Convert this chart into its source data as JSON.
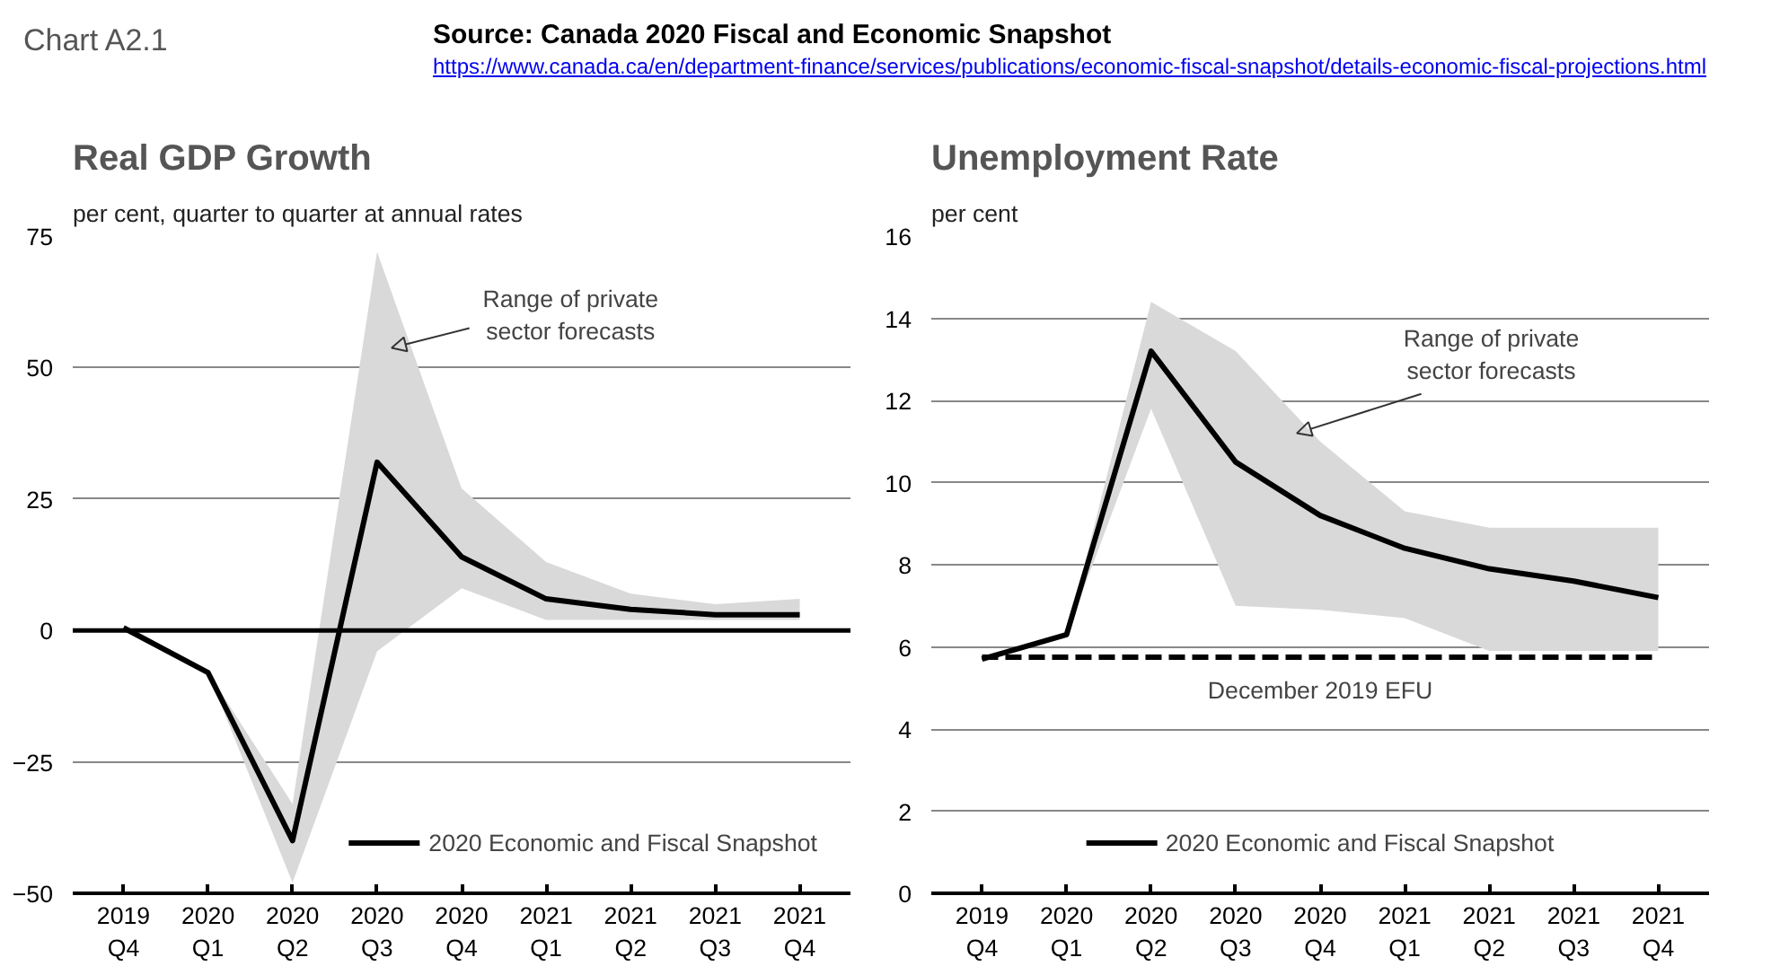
{
  "chart_data": [
    {
      "type": "line",
      "title": "Real GDP Growth",
      "ylabel": "per cent, quarter to quarter at annual rates",
      "annotations": [
        "Chart A2.1",
        "Source: Canada 2020 Fiscal and Economic Snapshot",
        "https://www.canada.ca/en/department-finance/services/publications/economic-fiscal-snapshot/details-economic-fiscal-projections.html",
        "Range of private sector forecasts"
      ],
      "categories": [
        "2019\nQ4",
        "2020\nQ1",
        "2020\nQ2",
        "2020\nQ3",
        "2020\nQ4",
        "2021\nQ1",
        "2021\nQ2",
        "2021\nQ3",
        "2021\nQ4"
      ],
      "series": [
        {
          "name": "2020 Economic and Fiscal Snapshot",
          "color": "#000000",
          "values": [
            0.5,
            -8,
            -40,
            32,
            14,
            6,
            4,
            3,
            3
          ],
          "lower": [
            0.5,
            -8,
            -48,
            -4,
            8,
            2,
            2,
            2,
            2
          ],
          "upper": [
            0.5,
            -8,
            -33,
            72,
            27,
            13,
            7,
            5,
            6
          ]
        }
      ],
      "ylim": [
        -50,
        75
      ],
      "yticks": [
        -50,
        -25,
        0,
        25,
        50,
        75
      ],
      "grid": "y",
      "legend": "bottom right",
      "line_style": "solid",
      "ref_lines": [
        {
          "axis": "y",
          "value": 0,
          "color": "#000000"
        }
      ]
    },
    {
      "type": "line",
      "title": "Unemployment Rate",
      "ylabel": "per cent",
      "annotations": [
        "Range of private sector forecasts"
      ],
      "categories": [
        "2019\nQ4",
        "2020\nQ1",
        "2020\nQ2",
        "2020\nQ3",
        "2020\nQ4",
        "2021\nQ1",
        "2021\nQ2",
        "2021\nQ3",
        "2021\nQ4"
      ],
      "series": [
        {
          "name": "2020 Economic and Fiscal Snapshot",
          "color": "#000000",
          "values": [
            5.7,
            6.3,
            13.2,
            10.5,
            9.2,
            8.4,
            7.9,
            7.6,
            7.2
          ],
          "lower": [
            5.7,
            6.3,
            11.8,
            7.0,
            6.9,
            6.7,
            5.9,
            5.9,
            5.9
          ],
          "upper": [
            5.7,
            6.3,
            14.4,
            13.2,
            11.0,
            9.3,
            8.9,
            8.9,
            8.9
          ]
        },
        {
          "name": "December 2019 EFU",
          "color": "#000000",
          "line_style": "dashed",
          "values": [
            5.75,
            5.75,
            5.75,
            5.75,
            5.75,
            5.75,
            5.75,
            5.75,
            5.75
          ]
        }
      ],
      "ylim": [
        0,
        16
      ],
      "yticks": [
        0,
        2,
        4,
        6,
        8,
        10,
        12,
        14,
        16
      ],
      "grid": "y",
      "legend": "bottom",
      "line_style": "solid"
    }
  ]
}
